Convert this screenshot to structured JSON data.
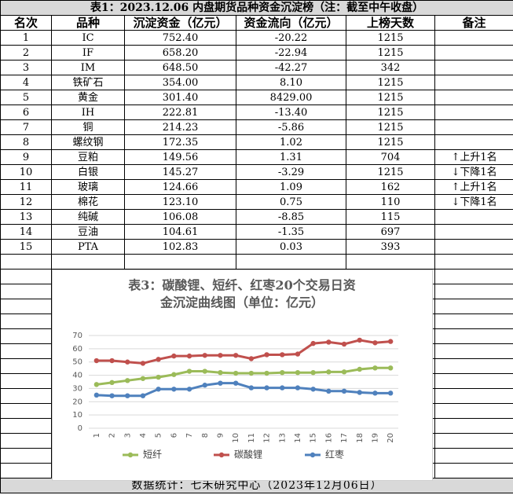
{
  "header": {
    "title": "表1：2023.12.06 内盘期货品种资金沉淀榜（注：截至中午收盘）"
  },
  "table": {
    "columns": [
      "名次",
      "品种",
      "沉淀资金（亿元）",
      "资金流向（亿元）",
      "上榜天数",
      "备注"
    ],
    "rows": [
      [
        "1",
        "IC",
        "752.40",
        "-20.22",
        "1215"
      ],
      [
        "2",
        "IF",
        "658.20",
        "-22.94",
        "1215"
      ],
      [
        "3",
        "IM",
        "648.50",
        "-42.27",
        "342"
      ],
      [
        "4",
        "铁矿石",
        "354.00",
        "8.10",
        "1215"
      ],
      [
        "5",
        "黄金",
        "301.40",
        "8429.00",
        "1215"
      ],
      [
        "6",
        "IH",
        "222.81",
        "-13.40",
        "1215"
      ],
      [
        "7",
        "铜",
        "214.23",
        "-5.86",
        "1215"
      ],
      [
        "8",
        "螺纹钢",
        "172.35",
        "1.02",
        "1215"
      ],
      [
        "9",
        "豆粕",
        "149.56",
        "1.31",
        "704",
        "↑上升1名"
      ],
      [
        "10",
        "白银",
        "145.27",
        "-3.29",
        "1215",
        "↓下降1名"
      ],
      [
        "11",
        "玻璃",
        "124.66",
        "1.09",
        "162",
        "↑上升1名"
      ],
      [
        "12",
        "棉花",
        "123.10",
        "0.75",
        "110",
        "↓下降1名"
      ],
      [
        "13",
        "纯碱",
        "106.08",
        "-8.85",
        "115"
      ],
      [
        "14",
        "豆油",
        "104.61",
        "-1.35",
        "697"
      ],
      [
        "15",
        "PTA",
        "102.83",
        "0.03",
        "393"
      ]
    ]
  },
  "footer": {
    "text": "数据统计：七禾研究中心（2023年12月06日）"
  },
  "chart_data": {
    "type": "line",
    "title": [
      "表3：碳酸锂、短纤、红枣20个交易日资",
      "金沉淀曲线图（单位：亿元）"
    ],
    "categories": [
      "1",
      "2",
      "3",
      "4",
      "5",
      "6",
      "7",
      "8",
      "9",
      "10",
      "11",
      "12",
      "13",
      "14",
      "15",
      "16",
      "17",
      "18",
      "19",
      "20"
    ],
    "series": [
      {
        "name": "短纤",
        "color": "#9bbb59",
        "values": [
          33,
          34.5,
          36,
          37.5,
          38.5,
          40.5,
          43,
          43,
          42,
          41.5,
          41.5,
          41.5,
          42,
          42,
          42,
          42.5,
          42.5,
          44.5,
          45.5,
          45.5
        ]
      },
      {
        "name": "碳酸锂",
        "color": "#c0504d",
        "values": [
          51,
          51,
          50,
          49,
          52,
          54.5,
          54.5,
          55,
          55,
          55,
          52.5,
          55.5,
          55.5,
          56,
          64,
          65,
          63.5,
          66.5,
          64.5,
          65.5
        ]
      },
      {
        "name": "红枣",
        "color": "#4f81bd",
        "values": [
          25,
          24.5,
          24.5,
          24.5,
          29.5,
          29.5,
          29.5,
          32.5,
          34,
          34,
          30.5,
          30.5,
          30.5,
          30.5,
          29.5,
          28,
          28,
          27,
          26.5,
          26.5
        ]
      }
    ],
    "ylim": [
      0,
      70
    ],
    "yticks": [
      0,
      10,
      20,
      30,
      40,
      50,
      60,
      70
    ],
    "grid": true,
    "legend": "bottom"
  }
}
